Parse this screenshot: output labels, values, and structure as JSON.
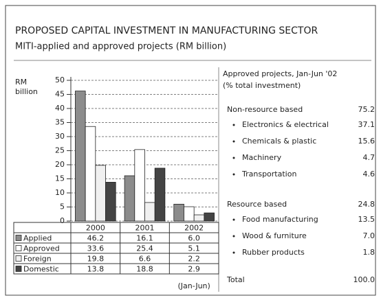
{
  "chart_data": {
    "type": "bar",
    "title": "PROPOSED CAPITAL INVESTMENT IN MANUFACTURING SECTOR",
    "subtitle": "MITI-applied and approved projects (RM billion)",
    "ylabel": [
      "RM",
      "billion"
    ],
    "categories": [
      "2000",
      "2001",
      "2002"
    ],
    "note": "(Jan-Jun)",
    "series": [
      {
        "name": "Applied",
        "color": "#8c8c8c",
        "values": [
          46.2,
          16.1,
          6.0
        ],
        "value_labels": [
          "46.2",
          "16.1",
          "6.0"
        ]
      },
      {
        "name": "Approved",
        "color": "#ffffff",
        "values": [
          33.6,
          25.4,
          5.1
        ],
        "value_labels": [
          "33.6",
          "25.4",
          "5.1"
        ]
      },
      {
        "name": "Foreign",
        "color": "#f0f0f0",
        "values": [
          19.8,
          6.6,
          2.2
        ],
        "value_labels": [
          "19.8",
          "6.6",
          "2.2"
        ]
      },
      {
        "name": "Domestic",
        "color": "#444444",
        "values": [
          13.8,
          18.8,
          2.9
        ],
        "value_labels": [
          "13.8",
          "18.8",
          "2.9"
        ]
      }
    ],
    "ylim": [
      0,
      50
    ],
    "yticks": [
      0,
      5,
      10,
      15,
      20,
      25,
      30,
      35,
      40,
      45,
      50
    ],
    "grid": true
  },
  "breakdown": {
    "title": "Approved projects, Jan-Jun '02",
    "subtitle": "(% total investment)",
    "groups": [
      {
        "name": "Non-resource based",
        "value": 75.2,
        "items": [
          {
            "name": "Electronics & electrical",
            "value": 37.1
          },
          {
            "name": "Chemicals & plastic",
            "value": 15.6
          },
          {
            "name": "Machinery",
            "value": 4.7
          },
          {
            "name": "Transportation",
            "value": 4.6
          }
        ]
      },
      {
        "name": "Resource based",
        "value": 24.8,
        "items": [
          {
            "name": "Food manufacturing",
            "value": 13.5
          },
          {
            "name": "Wood & furniture",
            "value": 7,
            "value_label": "7.0"
          },
          {
            "name": "Rubber products",
            "value": 1.8
          }
        ]
      }
    ],
    "total": {
      "name": "Total",
      "value": 100,
      "value_label": "100.0"
    }
  }
}
